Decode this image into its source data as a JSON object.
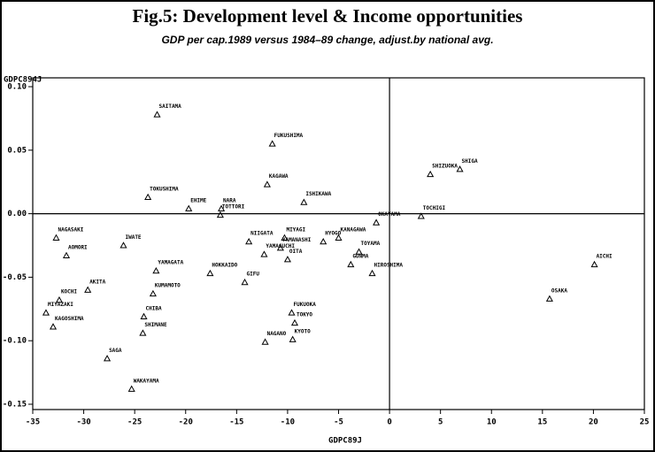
{
  "chart_data": {
    "type": "scatter",
    "title": "Fig.5: Development level & Income opportunities",
    "subtitle": "GDP per cap.1989 versus 1984–89 change, adjust.by national avg.",
    "x_label": "GDPC89J",
    "y_label": "GDPC894J",
    "xlim": [
      -35,
      25
    ],
    "xticks": [
      -35,
      -30,
      -25,
      -20,
      -15,
      -10,
      -5,
      0,
      5,
      10,
      15,
      20,
      25
    ],
    "ylim": [
      -0.15,
      0.1
    ],
    "yticks": [
      -0.15,
      {
        "value": -0.1,
        "label": "-0.10"
      },
      -0.05,
      {
        "value": 0,
        "label": "0.00"
      },
      0.05,
      {
        "value": 0.1,
        "label": "0.10"
      }
    ],
    "color": "#000000",
    "labels": [
      "SAITAMA",
      "FUKUSHIMA",
      "KAGAWA",
      "ISHIKAWA",
      "TOKUSHIMA",
      "SHIZUOKA",
      "SHIGA",
      "EHIME",
      "NARA",
      "TOTTORI",
      "TOCHIGI",
      "OKAYAMA",
      "NAGASAKI",
      "IWATE",
      "AOMORI",
      "NIIGATA",
      "MIYAGI",
      "YAMANASHI",
      "YAMAGUCHI",
      "OITA",
      "HYOGO",
      "KANAGAWA",
      "TOYAMA",
      "GUNMA",
      "HIROSHIMA",
      "YAMAGATA",
      "KOCHI",
      "AKITA",
      "HOKKAIDO",
      "GIFU",
      "KUMAMOTO",
      "MIYAZAKI",
      "KAGOSHIMA",
      "CHIBA",
      "SHIMANE",
      "FUKUOKA",
      "TOKYO",
      "KYOTO",
      "NAGANO",
      "SAGA",
      "WAKAYAMA",
      "OSAKA",
      "AICHI"
    ],
    "x": [
      -22.8,
      -11.5,
      -12.0,
      -8.4,
      -23.7,
      4.0,
      6.9,
      -19.7,
      -16.5,
      -16.6,
      3.1,
      -1.3,
      -32.7,
      -26.1,
      -31.7,
      -13.8,
      -10.3,
      -10.7,
      -12.3,
      -10.0,
      -6.5,
      -5.0,
      -3.0,
      -3.8,
      -1.7,
      -22.9,
      -32.4,
      -29.6,
      -17.6,
      -14.2,
      -23.2,
      -33.7,
      -33.0,
      -24.1,
      -24.2,
      -9.6,
      -9.3,
      -9.5,
      -12.2,
      -27.7,
      -25.3,
      15.7,
      20.1
    ],
    "values": [
      0.078,
      0.055,
      0.023,
      0.009,
      0.013,
      0.031,
      0.035,
      0.004,
      0.004,
      -0.001,
      -0.002,
      -0.007,
      -0.019,
      -0.025,
      -0.033,
      -0.022,
      -0.019,
      -0.027,
      -0.032,
      -0.036,
      -0.022,
      -0.019,
      -0.03,
      -0.04,
      -0.047,
      -0.045,
      -0.068,
      -0.06,
      -0.047,
      -0.054,
      -0.063,
      -0.078,
      -0.089,
      -0.081,
      -0.094,
      -0.078,
      -0.086,
      -0.099,
      -0.101,
      -0.114,
      -0.138,
      -0.067,
      -0.04
    ]
  }
}
